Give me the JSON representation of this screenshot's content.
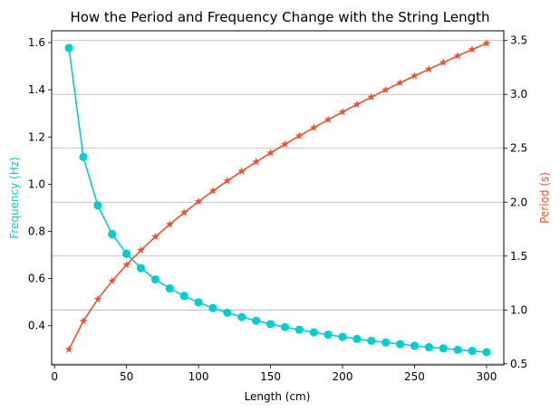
{
  "chart_data": {
    "type": "line",
    "title": "How the Period and Frequency Change with the String Length",
    "xlabel": "Length (cm)",
    "ylabel_left": "Frequency (Hz)",
    "ylabel_right": "Period (s)",
    "xlim": [
      -2,
      312
    ],
    "ylim_left": [
      0.234,
      1.65
    ],
    "ylim_right": [
      0.49,
      3.59
    ],
    "x_ticks": [
      0,
      50,
      100,
      150,
      200,
      250,
      300
    ],
    "y_left_ticks": [
      0.4,
      0.6,
      0.8,
      1.0,
      1.2,
      1.4,
      1.6
    ],
    "y_left_tick_labels": [
      "0.4",
      "0.6",
      "0.8",
      "1.0",
      "1.2",
      "1.4",
      "1.6"
    ],
    "y_right_ticks": [
      0.5,
      1.0,
      1.5,
      2.0,
      2.5,
      3.0,
      3.5
    ],
    "y_right_tick_labels": [
      "0.5",
      "1.0",
      "1.5",
      "2.0",
      "2.5",
      "3.0",
      "3.5"
    ],
    "grid": "horizontal lines at right-axis ticks",
    "colors": {
      "frequency": "#00CED1",
      "period": "#F0522E"
    },
    "x": [
      10,
      20,
      30,
      40,
      50,
      60,
      70,
      80,
      90,
      100,
      110,
      120,
      130,
      140,
      150,
      160,
      170,
      180,
      190,
      200,
      210,
      220,
      230,
      240,
      250,
      260,
      270,
      280,
      290,
      300
    ],
    "series": [
      {
        "axis": "left",
        "marker": "circle",
        "values": [
          1.577,
          1.115,
          0.91,
          0.788,
          0.705,
          0.644,
          0.596,
          0.558,
          0.526,
          0.499,
          0.475,
          0.455,
          0.437,
          0.421,
          0.407,
          0.394,
          0.383,
          0.372,
          0.362,
          0.353,
          0.344,
          0.336,
          0.329,
          0.322,
          0.315,
          0.309,
          0.304,
          0.298,
          0.293,
          0.288
        ]
      },
      {
        "axis": "right",
        "marker": "star",
        "values": [
          0.634,
          0.897,
          1.099,
          1.269,
          1.419,
          1.554,
          1.679,
          1.794,
          1.903,
          2.006,
          2.104,
          2.198,
          2.287,
          2.374,
          2.457,
          2.537,
          2.615,
          2.691,
          2.765,
          2.837,
          2.907,
          2.975,
          3.042,
          3.108,
          3.172,
          3.234,
          3.296,
          3.357,
          3.416,
          3.474
        ]
      }
    ]
  }
}
